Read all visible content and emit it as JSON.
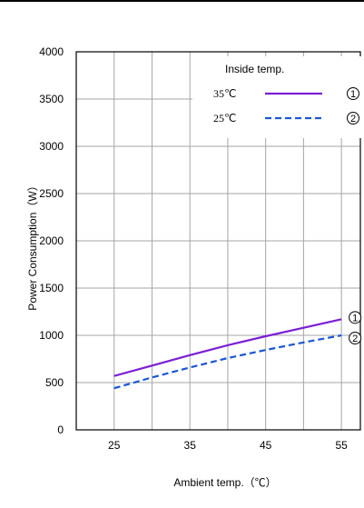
{
  "chart_data": {
    "type": "line",
    "xlabel": "Ambient temp.（℃）",
    "ylabel": "Power Consumption（W）",
    "xlim": [
      20,
      57.5
    ],
    "ylim": [
      0,
      4000
    ],
    "x_ticks": [
      25,
      35,
      45,
      55
    ],
    "x_ticks_labels": [
      "25",
      "35",
      "45",
      "55"
    ],
    "y_ticks": [
      0,
      500,
      1000,
      1500,
      2000,
      2500,
      3000,
      3500,
      4000
    ],
    "y_ticks_labels": [
      "0",
      "500",
      "1000",
      "1500",
      "2000",
      "2500",
      "3000",
      "3500",
      "4000"
    ],
    "grid": true,
    "legend": {
      "title": "Inside temp.",
      "placement": "top-right"
    },
    "series": [
      {
        "name": "35℃",
        "marker": "1",
        "color": "#7b1fd4",
        "dash": "solid",
        "x": [
          25,
          30,
          35,
          40,
          45,
          50,
          55
        ],
        "y": [
          570,
          680,
          790,
          895,
          990,
          1080,
          1170
        ]
      },
      {
        "name": "25℃",
        "marker": "2",
        "color": "#1a56d6",
        "dash": "dashed",
        "x": [
          25,
          30,
          35,
          40,
          45,
          50,
          55
        ],
        "y": [
          440,
          555,
          660,
          760,
          845,
          925,
          1000
        ]
      }
    ]
  }
}
